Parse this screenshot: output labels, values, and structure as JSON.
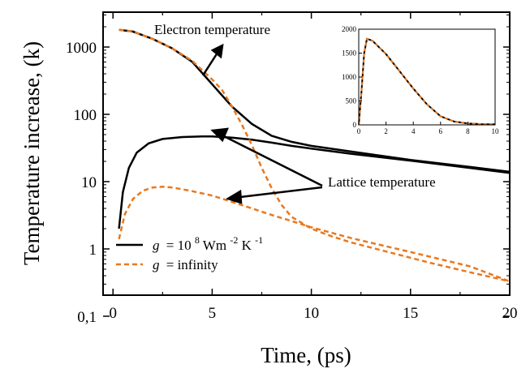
{
  "chart_data": {
    "type": "line",
    "xlabel": "Time, (ps)",
    "ylabel": "Temperature increase, (k)",
    "xlim": [
      -0.5,
      20
    ],
    "ylim": [
      0.1,
      3000
    ],
    "yscale": "log",
    "xticks": [
      0,
      5,
      10,
      15,
      20
    ],
    "xtick_labels": [
      "0",
      "5",
      "10",
      "15",
      "20"
    ],
    "yticks": [
      0.1,
      1,
      10,
      100,
      1000
    ],
    "ytick_labels": [
      "0,1",
      "1",
      "10",
      "100",
      "1000"
    ],
    "grid": false,
    "legend": {
      "placement": "lower-left",
      "entries": [
        {
          "label": "= 10",
          "prefix": "g",
          "sup1": "8",
          "unit": " Wm",
          "sup2": "-2",
          "unit2": " K",
          "sup3": "-1",
          "color": "#000000",
          "style": "solid"
        },
        {
          "label": "= infinity",
          "prefix": "g",
          "color": "#E8781E",
          "style": "dashed"
        }
      ]
    },
    "annotations": [
      "Electron temperature",
      "Lattice temperature"
    ],
    "series": [
      {
        "group": "g1e8",
        "kind": "electron",
        "color": "#000000",
        "style": "solid",
        "points": [
          [
            0.3,
            1800
          ],
          [
            1,
            1700
          ],
          [
            2,
            1320
          ],
          [
            3,
            950
          ],
          [
            4,
            600
          ],
          [
            5,
            280
          ],
          [
            6,
            130
          ],
          [
            7,
            72
          ],
          [
            8,
            48
          ],
          [
            9,
            39
          ],
          [
            10,
            34
          ],
          [
            12,
            28
          ],
          [
            15,
            21
          ],
          [
            18,
            16.5
          ],
          [
            20,
            14
          ]
        ]
      },
      {
        "group": "g1e8",
        "kind": "lattice",
        "color": "#000000",
        "style": "solid",
        "points": [
          [
            0.3,
            2
          ],
          [
            0.5,
            7
          ],
          [
            0.8,
            16
          ],
          [
            1.2,
            27
          ],
          [
            1.8,
            37
          ],
          [
            2.5,
            43
          ],
          [
            3.5,
            46
          ],
          [
            4.5,
            47
          ],
          [
            5,
            47
          ],
          [
            6,
            45
          ],
          [
            7,
            42
          ],
          [
            8,
            38
          ],
          [
            9,
            34
          ],
          [
            10,
            31
          ],
          [
            12,
            26
          ],
          [
            15,
            20.5
          ],
          [
            18,
            16
          ],
          [
            20,
            13.5
          ]
        ]
      },
      {
        "group": "ginf",
        "kind": "electron",
        "color": "#E8781E",
        "style": "dashed",
        "points": [
          [
            0.3,
            1800
          ],
          [
            1,
            1700
          ],
          [
            2,
            1320
          ],
          [
            3,
            950
          ],
          [
            4,
            620
          ],
          [
            5,
            330
          ],
          [
            5.5,
            230
          ],
          [
            6,
            130
          ],
          [
            6.5,
            70
          ],
          [
            7,
            35
          ],
          [
            7.5,
            16
          ],
          [
            8,
            8
          ],
          [
            8.5,
            4.5
          ],
          [
            9,
            3
          ],
          [
            10,
            2
          ],
          [
            11,
            1.55
          ],
          [
            12,
            1.25
          ],
          [
            14,
            0.88
          ],
          [
            16,
            0.62
          ],
          [
            18,
            0.45
          ],
          [
            20,
            0.33
          ]
        ]
      },
      {
        "group": "ginf",
        "kind": "lattice",
        "color": "#E8781E",
        "style": "dashed",
        "points": [
          [
            0.3,
            1.4
          ],
          [
            0.6,
            3.3
          ],
          [
            1,
            5.5
          ],
          [
            1.5,
            7.3
          ],
          [
            2,
            8.2
          ],
          [
            2.5,
            8.4
          ],
          [
            3,
            8.2
          ],
          [
            4,
            7.2
          ],
          [
            5,
            6.2
          ],
          [
            6,
            5
          ],
          [
            7,
            4
          ],
          [
            8,
            3.2
          ],
          [
            9,
            2.6
          ],
          [
            10,
            2.1
          ],
          [
            12,
            1.45
          ],
          [
            15,
            0.9
          ],
          [
            18,
            0.55
          ],
          [
            20,
            0.33
          ]
        ]
      }
    ],
    "inset": {
      "type": "line",
      "xlim": [
        0,
        10
      ],
      "ylim": [
        0,
        2000
      ],
      "xticks": [
        0,
        2,
        4,
        6,
        8,
        10
      ],
      "xtick_labels": [
        "0",
        "2",
        "4",
        "6",
        "8",
        "10"
      ],
      "yticks": [
        0,
        500,
        1000,
        1500,
        2000
      ],
      "ytick_labels": [
        "0",
        "500",
        "1000",
        "1500",
        "2000"
      ],
      "series": [
        {
          "color": "#000000",
          "style": "solid",
          "points": [
            [
              0,
              0
            ],
            [
              0.2,
              700
            ],
            [
              0.4,
              1500
            ],
            [
              0.6,
              1800
            ],
            [
              1,
              1760
            ],
            [
              2,
              1480
            ],
            [
              3,
              1120
            ],
            [
              4,
              760
            ],
            [
              5,
              430
            ],
            [
              6,
              180
            ],
            [
              7,
              70
            ],
            [
              8,
              30
            ],
            [
              9,
              15
            ],
            [
              10,
              10
            ]
          ]
        },
        {
          "color": "#E8781E",
          "style": "dashed",
          "points": [
            [
              0,
              0
            ],
            [
              0.2,
              700
            ],
            [
              0.4,
              1500
            ],
            [
              0.6,
              1800
            ],
            [
              1,
              1760
            ],
            [
              2,
              1480
            ],
            [
              3,
              1120
            ],
            [
              4,
              760
            ],
            [
              5,
              430
            ],
            [
              6,
              180
            ],
            [
              7,
              70
            ],
            [
              8,
              30
            ],
            [
              9,
              15
            ],
            [
              10,
              10
            ]
          ]
        }
      ]
    }
  }
}
